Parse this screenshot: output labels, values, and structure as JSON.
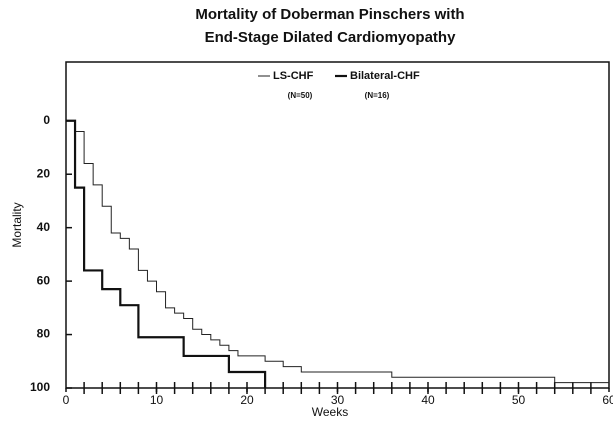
{
  "chart_data": {
    "type": "step-line",
    "title": [
      "Mortality of Doberman Pinschers with",
      "End-Stage Dilated Cardiomyopathy"
    ],
    "x_label": "Weeks",
    "y_label": "Mortality",
    "xlim": [
      0,
      60
    ],
    "xticks": [
      0,
      10,
      20,
      30,
      40,
      50,
      60
    ],
    "x_minor_ticks": [
      2,
      4,
      6,
      8,
      10,
      12,
      14,
      16,
      18,
      20,
      22,
      24,
      26,
      28,
      30,
      32,
      34,
      36,
      38,
      40,
      42,
      44,
      46,
      48,
      50,
      52,
      54,
      56,
      58
    ],
    "ylim": [
      -22,
      100
    ],
    "y_inverted": true,
    "yticks": [
      0,
      20,
      40,
      60,
      80,
      100
    ],
    "series": [
      {
        "name": "LS-CHF",
        "n_label": "(N=50)",
        "color": "#222222",
        "width": 1,
        "x": [
          0,
          1,
          2,
          3,
          4,
          5,
          6,
          7,
          8,
          9,
          10,
          11,
          12,
          13,
          14,
          15,
          16,
          17,
          18,
          19,
          20,
          22,
          24,
          26,
          36,
          54,
          60
        ],
        "values": [
          0,
          4,
          16,
          24,
          32,
          42,
          44,
          48,
          56,
          60,
          64,
          70,
          72,
          74,
          78,
          80,
          82,
          84,
          86,
          88,
          88,
          90,
          92,
          94,
          96,
          98,
          98
        ]
      },
      {
        "name": "Bilateral-CHF",
        "n_label": "(N=16)",
        "color": "#111111",
        "width": 2.2,
        "x": [
          0,
          1,
          2,
          4,
          6,
          8,
          13,
          18,
          22
        ],
        "values": [
          0,
          25,
          56,
          63,
          69,
          81,
          88,
          94,
          100
        ]
      }
    ]
  }
}
